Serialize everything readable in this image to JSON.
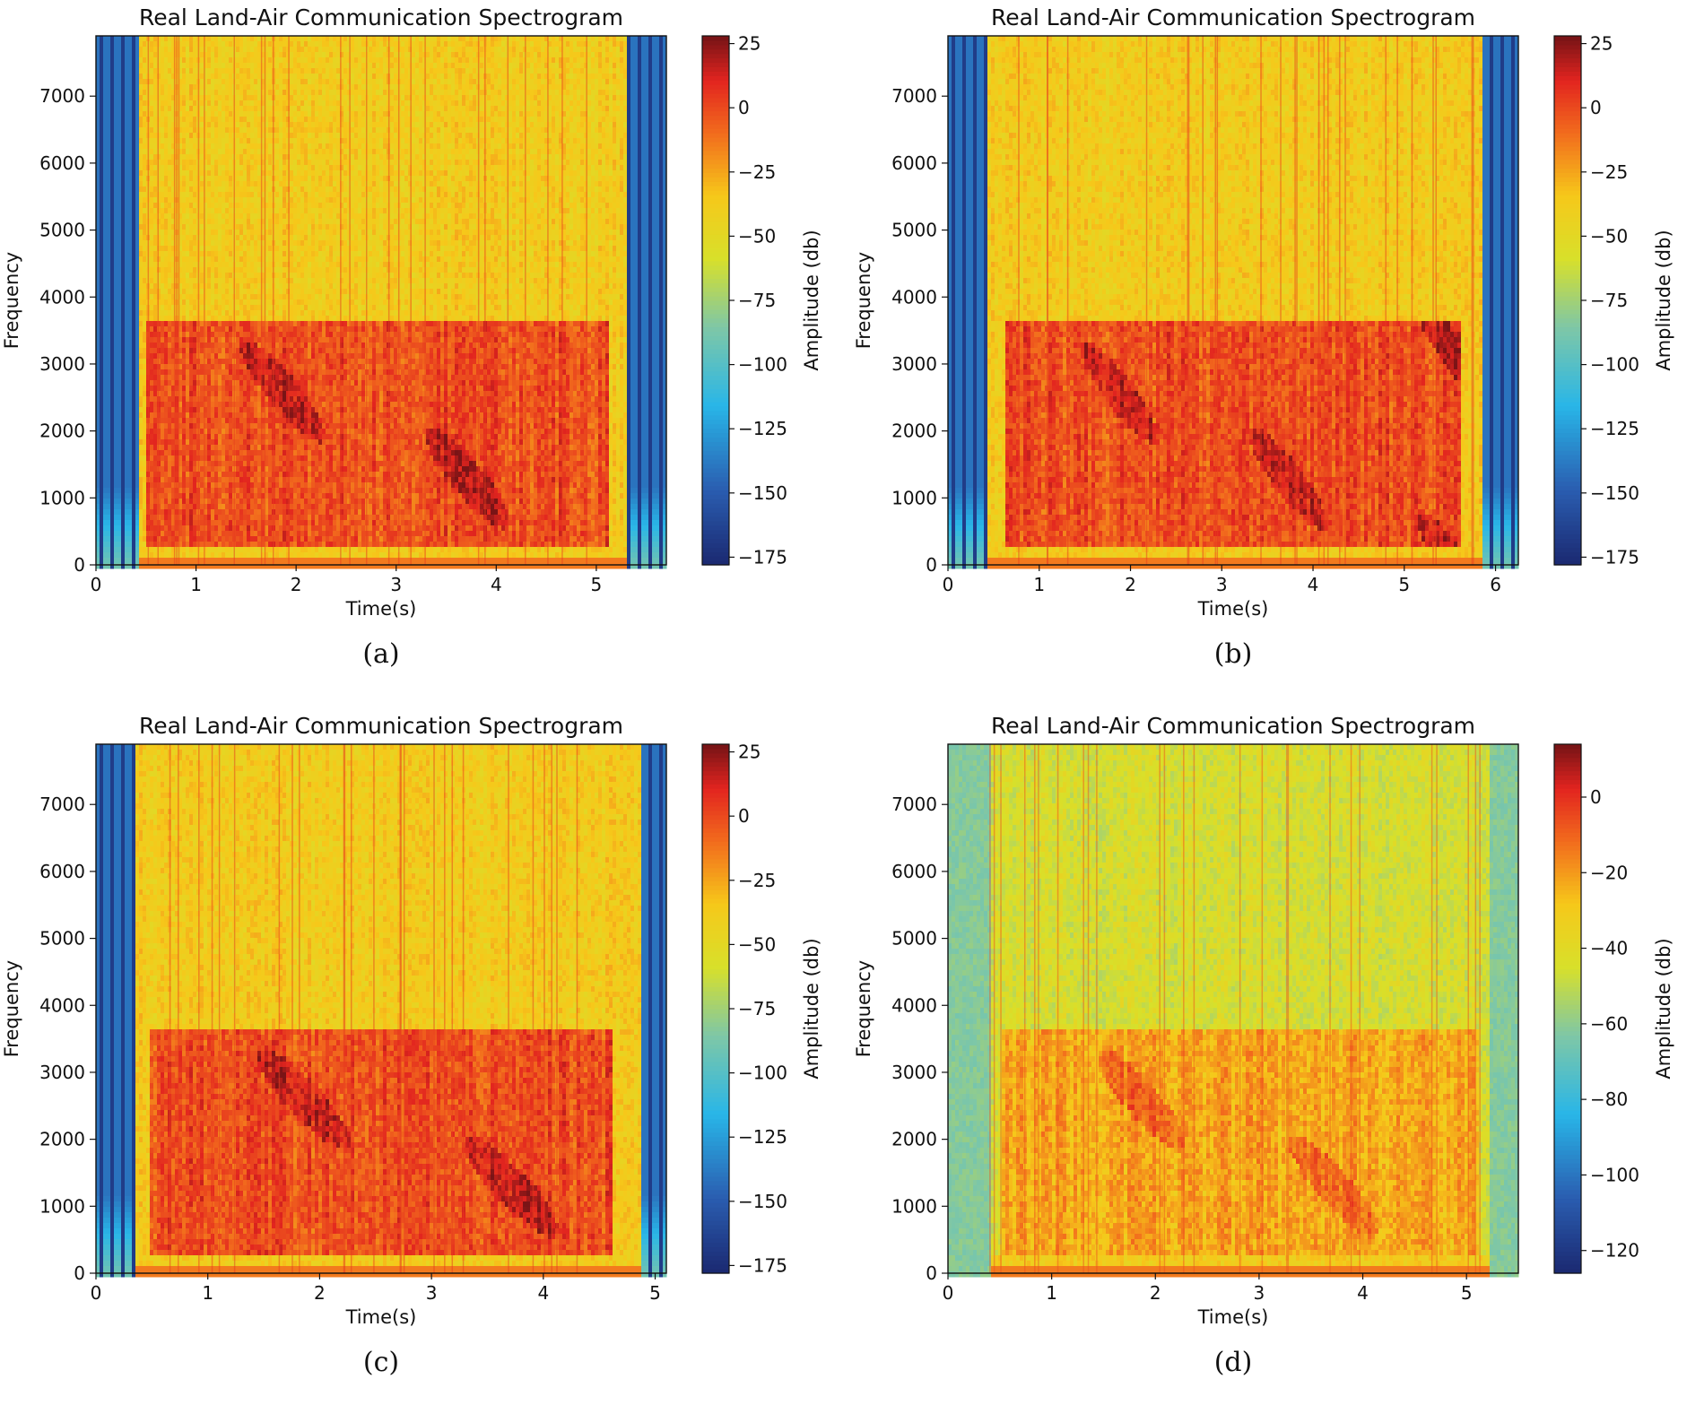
{
  "chart_data": [
    {
      "type": "heatmap",
      "caption": "(a)",
      "title": "Real Land-Air Communication Spectrogram",
      "xlabel": "Time(s)",
      "ylabel": "Frequency",
      "xlim": [
        0,
        5.7
      ],
      "ylim": [
        0,
        7900
      ],
      "xticks": [
        "0",
        "1",
        "2",
        "3",
        "4",
        "5"
      ],
      "yticks": [
        "0",
        "1000",
        "2000",
        "3000",
        "4000",
        "5000",
        "6000",
        "7000"
      ],
      "colorbar": {
        "label": "Amplitude (db)",
        "min": -178,
        "max": 28,
        "ticks": [
          "25",
          "0",
          "−25",
          "−50",
          "−75",
          "−100",
          "−125",
          "−150",
          "−175"
        ]
      },
      "speech_interval_s": [
        0.5,
        5.1
      ],
      "speech_band_hz": [
        300,
        3650
      ],
      "silence_edges_s": [
        0.4,
        5.3
      ]
    },
    {
      "type": "heatmap",
      "caption": "(b)",
      "title": "Real Land-Air Communication Spectrogram",
      "xlabel": "Time(s)",
      "ylabel": "Frequency",
      "xlim": [
        0,
        6.25
      ],
      "ylim": [
        0,
        7900
      ],
      "xticks": [
        "0",
        "1",
        "2",
        "3",
        "4",
        "5",
        "6"
      ],
      "yticks": [
        "0",
        "1000",
        "2000",
        "3000",
        "4000",
        "5000",
        "6000",
        "7000"
      ],
      "colorbar": {
        "label": "Amplitude (db)",
        "min": -178,
        "max": 28,
        "ticks": [
          "25",
          "0",
          "−25",
          "−50",
          "−75",
          "−100",
          "−125",
          "−150",
          "−175"
        ]
      },
      "speech_interval_s": [
        0.6,
        5.6
      ],
      "speech_band_hz": [
        300,
        3650
      ],
      "silence_edges_s": [
        0.4,
        5.85
      ]
    },
    {
      "type": "heatmap",
      "caption": "(c)",
      "title": "Real Land-Air Communication Spectrogram",
      "xlabel": "Time(s)",
      "ylabel": "Frequency",
      "xlim": [
        0,
        5.1
      ],
      "ylim": [
        0,
        7900
      ],
      "xticks": [
        "0",
        "1",
        "2",
        "3",
        "4",
        "5"
      ],
      "yticks": [
        "0",
        "1000",
        "2000",
        "3000",
        "4000",
        "5000",
        "6000",
        "7000"
      ],
      "colorbar": {
        "label": "Amplitude (db)",
        "min": -178,
        "max": 28,
        "ticks": [
          "25",
          "0",
          "−25",
          "−50",
          "−75",
          "−100",
          "−125",
          "−150",
          "−175"
        ]
      },
      "speech_interval_s": [
        0.45,
        4.6
      ],
      "speech_band_hz": [
        300,
        3650
      ],
      "silence_edges_s": [
        0.35,
        4.85
      ]
    },
    {
      "type": "heatmap",
      "caption": "(d)",
      "title": "Real Land-Air Communication Spectrogram",
      "xlabel": "Time(s)",
      "ylabel": "Frequency",
      "xlim": [
        0,
        5.5
      ],
      "ylim": [
        0,
        7900
      ],
      "xticks": [
        "0",
        "1",
        "2",
        "3",
        "4",
        "5"
      ],
      "yticks": [
        "0",
        "1000",
        "2000",
        "3000",
        "4000",
        "5000",
        "6000",
        "7000"
      ],
      "colorbar": {
        "label": "Amplitude (db)",
        "min": -126,
        "max": 14,
        "ticks": [
          "0",
          "−20",
          "−40",
          "−60",
          "−80",
          "−100",
          "−120"
        ]
      },
      "speech_interval_s": [
        0.5,
        5.1
      ],
      "speech_band_hz": [
        300,
        3650
      ],
      "silence_edges_s": [
        0.4,
        5.2
      ]
    }
  ]
}
